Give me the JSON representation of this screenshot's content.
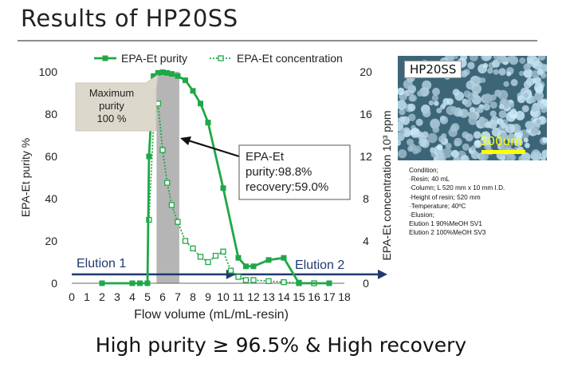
{
  "slide_title": "Results of HP20SS",
  "bottom_text": "High purity ≥ 96.5% & High recovery",
  "photo": {
    "label": "HP20SS",
    "scale_text": "500um"
  },
  "conditions": {
    "heading": "Condition;",
    "lines": [
      "·Resin; 40 mL",
      "·Column; L 520 mm x 10 mm I.D.",
      "·Height of resin; 520 mm",
      "·Temperature; 40ºC",
      "·Elusion;",
      "Elution 1 90%MeOH SV1",
      "Elution 2 100%MeOH SV3"
    ]
  },
  "colors": {
    "purity": "#1fa846",
    "concentration": "#1fa846",
    "elution_arrow": "#1f3a6e",
    "shade": "#b5b5b5"
  },
  "chart_data": {
    "type": "line",
    "xlabel": "Flow volume (mL/mL-resin)",
    "ylabel": "EPA-Et purity %",
    "y2label": "EPA-Et concentration 10³ ppm",
    "xlim": [
      0,
      18
    ],
    "ylim": [
      0,
      100
    ],
    "y2lim": [
      0,
      20
    ],
    "x_ticks": [
      "0",
      "1",
      "2",
      "3",
      "4",
      "5",
      "6",
      "7",
      "8",
      "9",
      "10",
      "11",
      "12",
      "13",
      "14",
      "15",
      "16",
      "17",
      "18"
    ],
    "y_ticks": [
      "0",
      "20",
      "40",
      "60",
      "80",
      "100"
    ],
    "y2_ticks": [
      "0",
      "4",
      "8",
      "12",
      "16",
      "20"
    ],
    "legend": [
      "EPA-Et purity",
      "EPA-Et concentration"
    ],
    "legend_position": "top",
    "series": [
      {
        "name": "EPA-Et purity",
        "axis": "left",
        "marker": "filled-square",
        "points": [
          [
            2,
            0
          ],
          [
            4,
            0
          ],
          [
            4.5,
            0
          ],
          [
            5,
            0
          ],
          [
            5.1,
            60
          ],
          [
            5.4,
            98
          ],
          [
            5.7,
            99.5
          ],
          [
            6,
            99.8
          ],
          [
            6.3,
            99.5
          ],
          [
            6.6,
            99
          ],
          [
            7,
            98
          ],
          [
            7.5,
            96
          ],
          [
            8,
            91
          ],
          [
            8.5,
            85
          ],
          [
            9,
            76
          ],
          [
            10,
            45
          ],
          [
            11,
            12
          ],
          [
            11.5,
            8
          ],
          [
            12,
            8
          ],
          [
            13,
            11
          ],
          [
            14,
            12
          ],
          [
            15,
            0
          ],
          [
            17,
            0
          ]
        ]
      },
      {
        "name": "EPA-Et concentration",
        "axis": "right",
        "marker": "hollow-square",
        "points": [
          [
            5.1,
            6
          ],
          [
            5.4,
            15
          ],
          [
            5.7,
            17
          ],
          [
            6,
            12.6
          ],
          [
            6.3,
            9.5
          ],
          [
            6.6,
            7.4
          ],
          [
            7,
            5.8
          ],
          [
            7.5,
            4
          ],
          [
            8,
            3.3
          ],
          [
            8.5,
            2.5
          ],
          [
            9,
            2
          ],
          [
            9.5,
            2.6
          ],
          [
            10,
            3
          ],
          [
            10.5,
            1.2
          ],
          [
            11,
            0.6
          ],
          [
            11.5,
            0.3
          ],
          [
            12,
            0.3
          ],
          [
            13,
            0.2
          ],
          [
            14,
            0.1
          ],
          [
            15,
            0.05
          ],
          [
            16,
            0
          ]
        ]
      }
    ],
    "shaded_region": [
      5.6,
      7.1
    ],
    "elution_arrow": {
      "y": 4.2,
      "labels": [
        "Elution 1",
        "Elution 2"
      ]
    },
    "annotations": {
      "max_purity": "Maximum\npurity\n100 %",
      "callout_lines": [
        "EPA-Et",
        "purity:98.8%",
        "recovery:59.0%"
      ]
    }
  }
}
